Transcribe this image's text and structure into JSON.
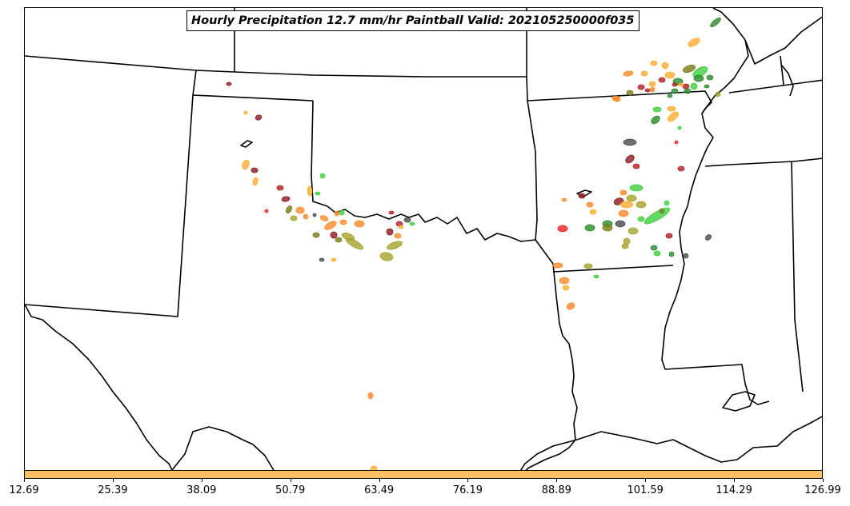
{
  "title": "Hourly Precipitation 12.7 mm/hr Paintball Valid: 202105250000f035",
  "colorbar": {
    "color": "#ffc061",
    "ticks": [
      "12.69",
      "25.39",
      "38.09",
      "50.79",
      "63.49",
      "76.19",
      "88.89",
      "101.59",
      "114.29",
      "126.99"
    ]
  },
  "member_colors": [
    "#ff8a2a",
    "#ffad33",
    "#8b1a1a",
    "#b22222",
    "#a5a22a",
    "#7a7a1a",
    "#2a8a2a",
    "#3ecf3e",
    "#ff2020",
    "#4a4a4a"
  ]
}
